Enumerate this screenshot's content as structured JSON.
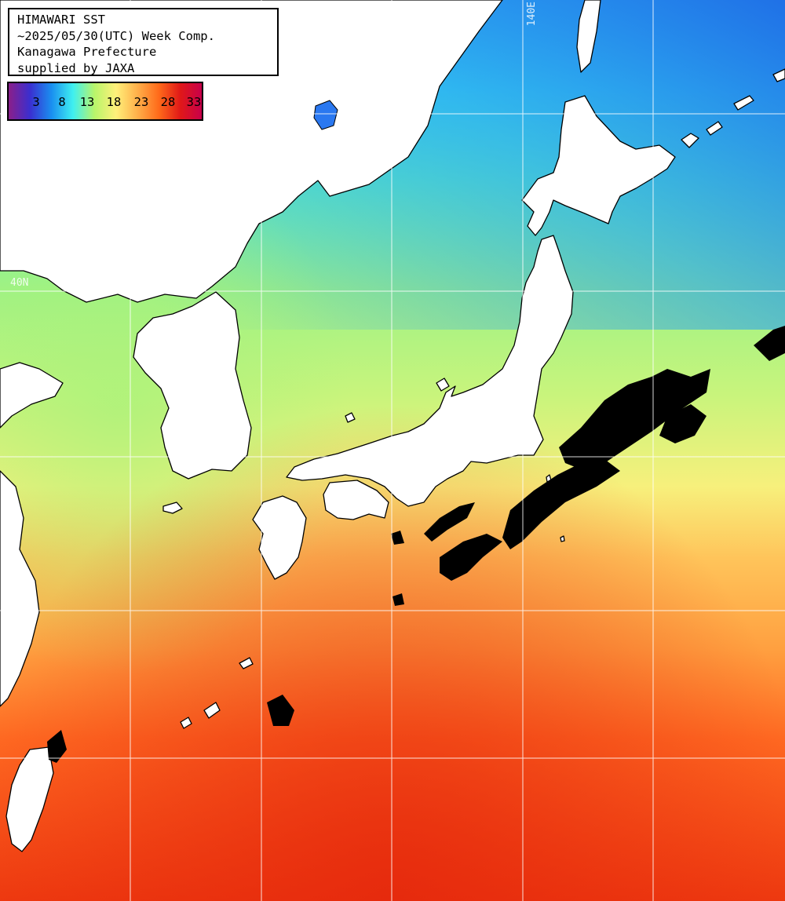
{
  "header": {
    "line1": "HIMAWARI SST",
    "line2": "~2025/05/30(UTC) Week Comp.",
    "line3": "Kanagawa Prefecture",
    "line4": "supplied by JAXA"
  },
  "legend": {
    "ticks": [
      "3",
      "8",
      "13",
      "18",
      "23",
      "28",
      "33"
    ],
    "colors": [
      "#8a1f8a",
      "#3a2fd0",
      "#1a8ff0",
      "#3ff0f0",
      "#b8f56a",
      "#fff07a",
      "#ffb04a",
      "#ff6a1a",
      "#e01818",
      "#c8004a"
    ]
  },
  "grid": {
    "lon_label": "140E",
    "lat_label": "40N"
  },
  "colors": {
    "land": "#ffffff",
    "coast": "#000000",
    "cloud_mask": "#000000",
    "gridline": "#ffffff"
  }
}
